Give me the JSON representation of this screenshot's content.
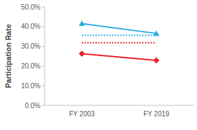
{
  "chart_data": {
    "type": "line",
    "y_label": "Participation Rate",
    "categories": [
      "FY 2003",
      "FY 2019"
    ],
    "series": [
      {
        "color": "#2aace2",
        "values": [
          41.5,
          36.5
        ],
        "marker": "triangle",
        "line_style": "solid"
      },
      {
        "color": "#2aace2",
        "values": [
          35.6,
          35.6
        ],
        "marker": "none",
        "line_style": "dotted"
      },
      {
        "color": "#e8222a",
        "values": [
          31.8,
          31.8
        ],
        "marker": "none",
        "line_style": "dotted"
      },
      {
        "color": "#e8222a",
        "values": [
          26.2,
          22.8
        ],
        "marker": "diamond",
        "line_style": "solid"
      }
    ],
    "ylim": [
      0,
      50
    ],
    "yticks": [
      {
        "value": 0,
        "label": "0.0%"
      },
      {
        "value": 10,
        "label": "10.0%"
      },
      {
        "value": 20,
        "label": "20.0%"
      },
      {
        "value": 30,
        "label": "30.0%"
      },
      {
        "value": 40,
        "label": "40.0%"
      },
      {
        "value": 50,
        "label": "50.0%"
      }
    ],
    "grid": false
  }
}
